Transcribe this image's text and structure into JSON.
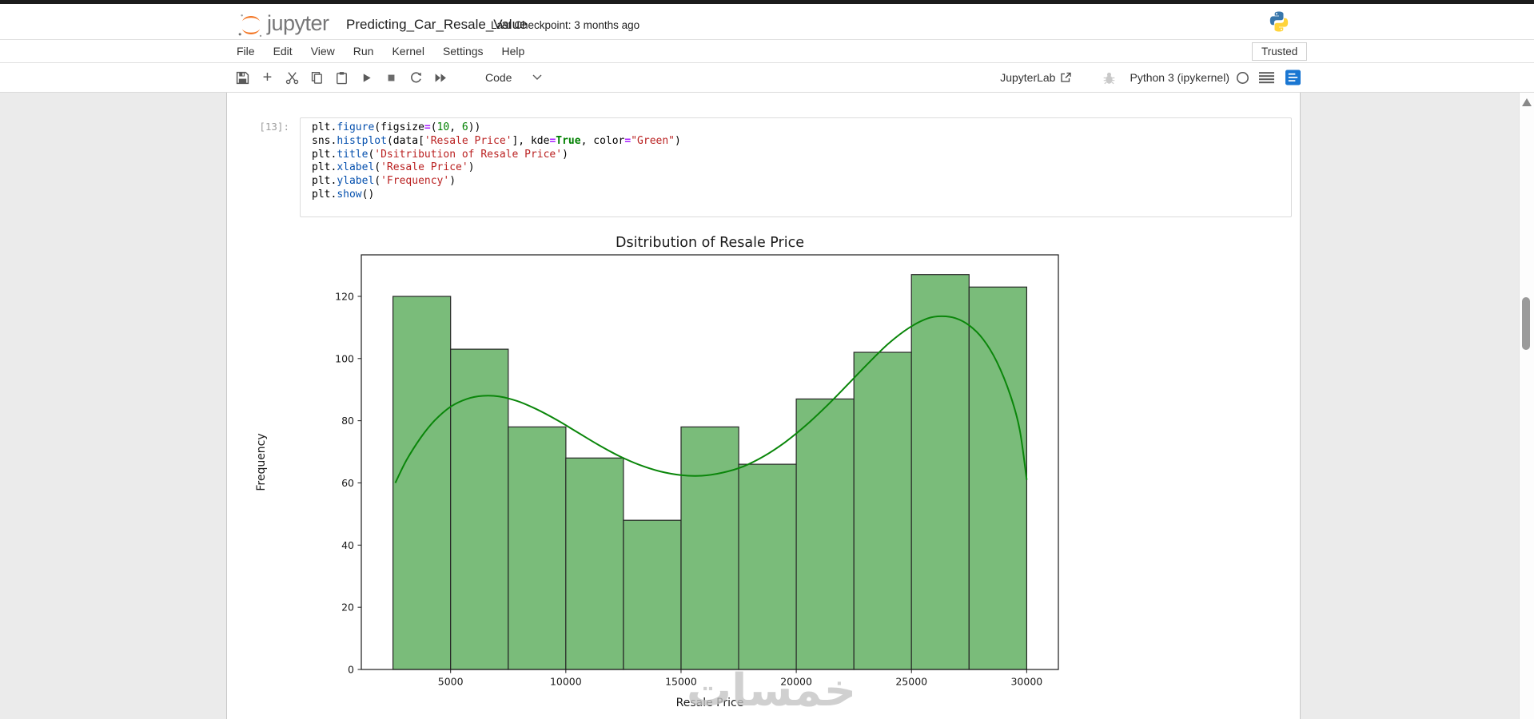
{
  "header": {
    "logo_text": "jupyter",
    "title": "Predicting_Car_Resale_Value",
    "checkpoint": "Last Checkpoint: 3 months ago"
  },
  "menubar": {
    "items": [
      "File",
      "Edit",
      "View",
      "Run",
      "Kernel",
      "Settings",
      "Help"
    ],
    "trusted_label": "Trusted"
  },
  "toolbar": {
    "icons": [
      "save",
      "insert-cell-below",
      "cut-cells",
      "copy-cells",
      "paste-cells",
      "run-cell",
      "interrupt-kernel",
      "restart-kernel",
      "restart-and-run-all"
    ],
    "cell_type_selector": "Code",
    "jupyterlab_link": "JupyterLab",
    "kernel_name": "Python 3 (ipykernel)"
  },
  "cell": {
    "execution_prompt": "[13]:",
    "code_lines": [
      [
        {
          "t": "plt."
        },
        {
          "t": "figure",
          "c": "prop"
        },
        {
          "t": "(figsize"
        },
        {
          "t": "=",
          "c": "op"
        },
        {
          "t": "("
        },
        {
          "t": "10",
          "c": "num"
        },
        {
          "t": ", "
        },
        {
          "t": "6",
          "c": "num"
        },
        {
          "t": "))"
        }
      ],
      [
        {
          "t": "sns."
        },
        {
          "t": "histplot",
          "c": "prop"
        },
        {
          "t": "(data["
        },
        {
          "t": "'Resale Price'",
          "c": "str"
        },
        {
          "t": "], kde"
        },
        {
          "t": "=",
          "c": "op"
        },
        {
          "t": "True",
          "c": "kw"
        },
        {
          "t": ", color"
        },
        {
          "t": "=",
          "c": "op"
        },
        {
          "t": "\"Green\"",
          "c": "str"
        },
        {
          "t": ")"
        }
      ],
      [
        {
          "t": "plt."
        },
        {
          "t": "title",
          "c": "prop"
        },
        {
          "t": "("
        },
        {
          "t": "'Dsitribution of Resale Price'",
          "c": "str"
        },
        {
          "t": ")"
        }
      ],
      [
        {
          "t": "plt."
        },
        {
          "t": "xlabel",
          "c": "prop"
        },
        {
          "t": "("
        },
        {
          "t": "'Resale Price'",
          "c": "str"
        },
        {
          "t": ")"
        }
      ],
      [
        {
          "t": "plt."
        },
        {
          "t": "ylabel",
          "c": "prop"
        },
        {
          "t": "("
        },
        {
          "t": "'Frequency'",
          "c": "str"
        },
        {
          "t": ")"
        }
      ],
      [
        {
          "t": "plt."
        },
        {
          "t": "show",
          "c": "prop"
        },
        {
          "t": "()"
        }
      ]
    ]
  },
  "chart_data": {
    "type": "bar",
    "subtype": "histogram",
    "title": "Dsitribution of Resale Price",
    "xlabel": "Resale Price",
    "ylabel": "Frequency",
    "bin_edges": [
      2500,
      5000,
      7500,
      10000,
      12500,
      15000,
      17500,
      20000,
      22500,
      25000,
      27500,
      30000
    ],
    "frequencies": [
      120,
      103,
      78,
      68,
      48,
      78,
      66,
      87,
      102,
      127,
      123
    ],
    "kde": [
      [
        2600,
        60
      ],
      [
        3100,
        67.5
      ],
      [
        3700,
        74.5
      ],
      [
        4300,
        80
      ],
      [
        5000,
        84.5
      ],
      [
        5700,
        87
      ],
      [
        6400,
        88
      ],
      [
        7100,
        87.8
      ],
      [
        7900,
        86.3
      ],
      [
        8700,
        83.8
      ],
      [
        9600,
        80.3
      ],
      [
        10500,
        76.3
      ],
      [
        11400,
        72.3
      ],
      [
        12300,
        68.7
      ],
      [
        13200,
        65.8
      ],
      [
        14100,
        63.7
      ],
      [
        15000,
        62.5
      ],
      [
        15900,
        62.3
      ],
      [
        16800,
        63.3
      ],
      [
        17700,
        65.3
      ],
      [
        18600,
        68.6
      ],
      [
        19500,
        73
      ],
      [
        20400,
        78.4
      ],
      [
        21300,
        84.6
      ],
      [
        22200,
        91.4
      ],
      [
        23100,
        98.3
      ],
      [
        24000,
        104.8
      ],
      [
        24900,
        109.9
      ],
      [
        25700,
        112.9
      ],
      [
        26300,
        113.6
      ],
      [
        26900,
        113
      ],
      [
        27500,
        110.7
      ],
      [
        28100,
        106.3
      ],
      [
        28700,
        99
      ],
      [
        29300,
        88
      ],
      [
        29700,
        77
      ],
      [
        30000,
        61
      ]
    ],
    "xticks": [
      5000,
      10000,
      15000,
      20000,
      25000,
      30000
    ],
    "yticks": [
      0,
      20,
      40,
      60,
      80,
      100,
      120
    ],
    "xlim": [
      1125,
      31375
    ],
    "ylim": [
      0,
      133.35
    ],
    "grid": false,
    "legend": "none",
    "watermark": "خمسات",
    "bar_fill": "#7abc7a",
    "bar_edge": "#262626",
    "kde_color": "#0a860a"
  },
  "colors": {
    "accent_blue": "#1976d2",
    "jupyter_orange": "#f37726",
    "page_background": "#ebebeb",
    "prompt_gray": "#9e9e9e"
  }
}
